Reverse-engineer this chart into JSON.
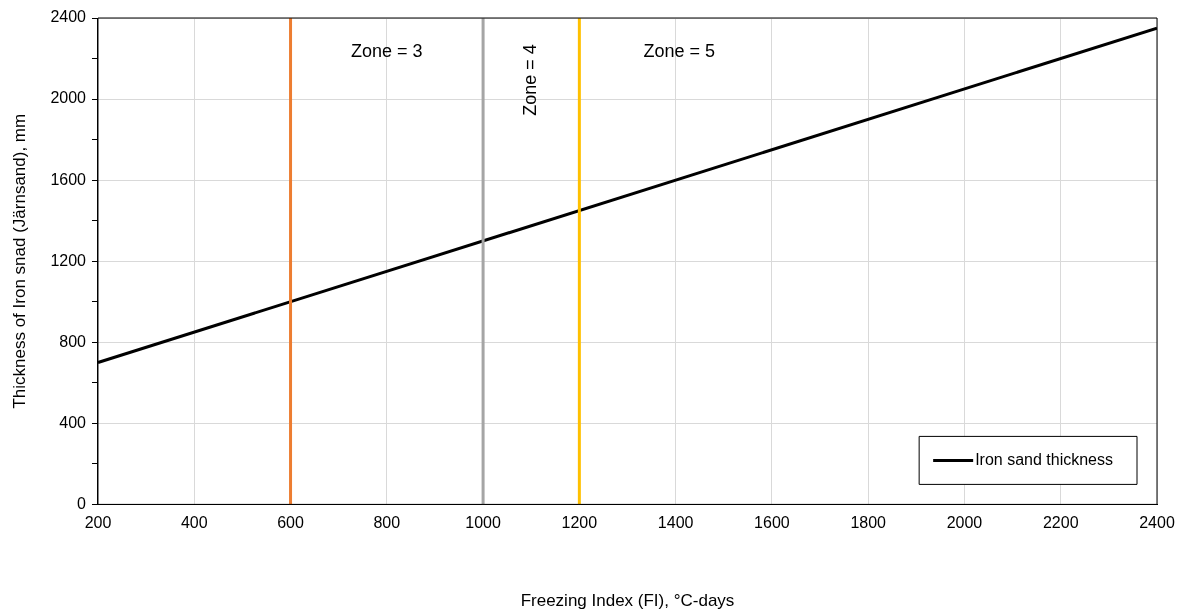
{
  "chart_data": {
    "type": "line",
    "xlabel": "Freezing Index (FI), °C-days",
    "ylabel": "Thickness of Iron snad (Järnsand), mm",
    "x": [
      200,
      2400
    ],
    "series": [
      {
        "name": "Iron sand thickness",
        "color": "#000000",
        "values": [
          700,
          2350
        ]
      }
    ],
    "xlim": [
      200,
      2400
    ],
    "xticks": [
      200,
      400,
      600,
      800,
      1000,
      1200,
      1400,
      1600,
      1800,
      2000,
      2200,
      2400
    ],
    "ylim": [
      0,
      2400
    ],
    "yticks": [
      0,
      {
        "value": 200,
        "label": null
      },
      400,
      {
        "value": 600,
        "label": null
      },
      800,
      {
        "value": 1000,
        "label": null
      },
      1200,
      {
        "value": 1400,
        "label": null
      },
      1600,
      {
        "value": 1800,
        "label": null
      },
      2000,
      {
        "value": 2200,
        "label": null
      },
      2400
    ],
    "ref_lines": [
      {
        "axis": "x",
        "value": 600,
        "color": "#ed7d31"
      },
      {
        "axis": "x",
        "value": 1000,
        "color": "#a5a5a5"
      },
      {
        "axis": "x",
        "value": 1200,
        "color": "#ffc000"
      }
    ],
    "annotations": [
      "Zone = 3",
      "Zone = 4",
      "Zone = 5"
    ],
    "grid": true,
    "legend": "bottom right",
    "marker": "none",
    "line_style": "solid"
  }
}
